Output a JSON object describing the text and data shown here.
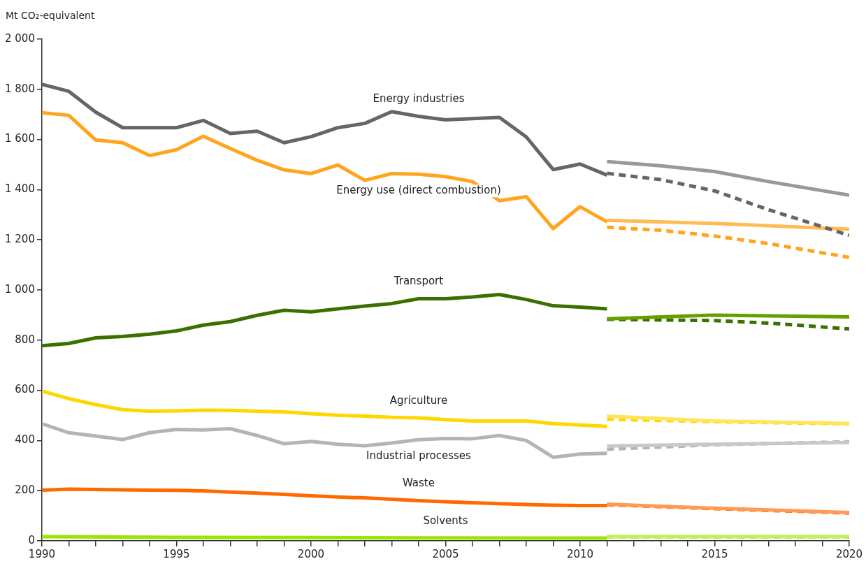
{
  "chart_data": {
    "type": "line",
    "ylabel": "Mt CO₂-equivalent",
    "xlim": [
      1990,
      2020
    ],
    "ylim": [
      0,
      2000
    ],
    "xticks": [
      1990,
      {
        "value": 1991,
        "label": null
      },
      {
        "value": 1992,
        "label": null
      },
      {
        "value": 1993,
        "label": null
      },
      {
        "value": 1994,
        "label": null
      },
      1995,
      {
        "value": 1996,
        "label": null
      },
      {
        "value": 1997,
        "label": null
      },
      {
        "value": 1998,
        "label": null
      },
      {
        "value": 1999,
        "label": null
      },
      2000,
      {
        "value": 2001,
        "label": null
      },
      {
        "value": 2002,
        "label": null
      },
      {
        "value": 2003,
        "label": null
      },
      {
        "value": 2004,
        "label": null
      },
      2005,
      {
        "value": 2006,
        "label": null
      },
      {
        "value": 2007,
        "label": null
      },
      {
        "value": 2008,
        "label": null
      },
      {
        "value": 2009,
        "label": null
      },
      2010,
      {
        "value": 2011,
        "label": null
      },
      {
        "value": 2012,
        "label": null
      },
      {
        "value": 2013,
        "label": null
      },
      {
        "value": 2014,
        "label": null
      },
      2015,
      {
        "value": 2016,
        "label": null
      },
      {
        "value": 2017,
        "label": null
      },
      {
        "value": 2018,
        "label": null
      },
      {
        "value": 2019,
        "label": null
      },
      2020
    ],
    "yticks": [
      0,
      200,
      400,
      600,
      800,
      {
        "value": 1000,
        "label": "1 000"
      },
      {
        "value": 1200,
        "label": "1 200"
      },
      {
        "value": 1400,
        "label": "1 400"
      },
      {
        "value": 1600,
        "label": "1 600"
      },
      {
        "value": 1800,
        "label": "1 800"
      },
      {
        "value": 2000,
        "label": "2 000"
      }
    ],
    "grid": false,
    "legend": false,
    "marker": "none",
    "series": [
      {
        "name": "Energy industries",
        "color": "#666666",
        "line_style": "solid",
        "x": [
          1990,
          1991,
          1992,
          1993,
          1994,
          1995,
          1996,
          1997,
          1998,
          1999,
          2000,
          2001,
          2002,
          2003,
          2004,
          2005,
          2006,
          2007,
          2008,
          2009,
          2010,
          2011
        ],
        "values": [
          1820,
          1792,
          1709,
          1647,
          1647,
          1647,
          1676,
          1624,
          1633,
          1587,
          1611,
          1647,
          1664,
          1711,
          1692,
          1678,
          1683,
          1688,
          1610,
          1480,
          1502,
          1458
        ]
      },
      {
        "color": "#999999",
        "line_style": "solid",
        "x": [
          2011,
          2013,
          2015,
          2017,
          2020
        ],
        "values": [
          1512,
          1495,
          1472,
          1432,
          1378
        ]
      },
      {
        "color": "#666666",
        "line_style": "dashed",
        "x": [
          2011,
          2013,
          2015,
          2017,
          2020
        ],
        "values": [
          1465,
          1440,
          1395,
          1320,
          1218
        ]
      },
      {
        "name": "Energy use (direct combustion)",
        "color": "#ffa41c",
        "line_style": "solid",
        "x": [
          1990,
          1991,
          1992,
          1993,
          1994,
          1995,
          1996,
          1997,
          1998,
          1999,
          2000,
          2001,
          2002,
          2003,
          2004,
          2005,
          2006,
          2007,
          2008,
          2009,
          2010,
          2011
        ],
        "values": [
          1707,
          1696,
          1598,
          1587,
          1536,
          1559,
          1613,
          1564,
          1517,
          1479,
          1464,
          1498,
          1437,
          1464,
          1462,
          1452,
          1432,
          1356,
          1372,
          1245,
          1332,
          1272
        ]
      },
      {
        "color": "#ffbb55",
        "line_style": "solid",
        "x": [
          2011,
          2015,
          2020
        ],
        "values": [
          1278,
          1265,
          1242
        ]
      },
      {
        "color": "#ffa41c",
        "line_style": "dashed",
        "x": [
          2011,
          2013,
          2015,
          2017,
          2020
        ],
        "values": [
          1250,
          1238,
          1215,
          1185,
          1130
        ]
      },
      {
        "name": "Transport",
        "color": "#3a7000",
        "line_style": "solid",
        "x": [
          1990,
          1991,
          1992,
          1993,
          1994,
          1995,
          1996,
          1997,
          1998,
          1999,
          2000,
          2001,
          2002,
          2003,
          2004,
          2005,
          2006,
          2007,
          2008,
          2009,
          2010,
          2011
        ],
        "values": [
          778,
          787,
          809,
          815,
          824,
          837,
          860,
          874,
          899,
          919,
          913,
          925,
          936,
          946,
          965,
          965,
          972,
          982,
          962,
          937,
          932,
          925
        ]
      },
      {
        "color": "#66a000",
        "line_style": "solid",
        "x": [
          2011,
          2015,
          2020
        ],
        "values": [
          885,
          900,
          893
        ]
      },
      {
        "color": "#3a7000",
        "line_style": "dashed",
        "x": [
          2011,
          2015,
          2017,
          2020
        ],
        "values": [
          883,
          878,
          868,
          845
        ]
      },
      {
        "name": "Agriculture",
        "color": "#ffd700",
        "line_style": "solid",
        "x": [
          1990,
          1991,
          1992,
          1993,
          1994,
          1995,
          1996,
          1997,
          1998,
          1999,
          2000,
          2001,
          2002,
          2003,
          2004,
          2005,
          2006,
          2007,
          2008,
          2009,
          2010,
          2011
        ],
        "values": [
          597,
          567,
          543,
          523,
          517,
          518,
          521,
          520,
          517,
          514,
          507,
          501,
          497,
          492,
          490,
          483,
          478,
          478,
          478,
          467,
          462,
          456
        ]
      },
      {
        "color": "#ffe45c",
        "line_style": "solid",
        "x": [
          2011,
          2015,
          2020
        ],
        "values": [
          497,
          478,
          468
        ]
      },
      {
        "color": "#ffd700",
        "line_style": "dashed",
        "x": [
          2011,
          2015,
          2020
        ],
        "values": [
          485,
          475,
          466
        ]
      },
      {
        "name": "Industrial processes",
        "color": "#b4b4b4",
        "line_style": "solid",
        "x": [
          1990,
          1991,
          1992,
          1993,
          1994,
          1995,
          1996,
          1997,
          1998,
          1999,
          2000,
          2001,
          2002,
          2003,
          2004,
          2005,
          2006,
          2007,
          2008,
          2009,
          2010,
          2011
        ],
        "values": [
          467,
          431,
          418,
          404,
          431,
          444,
          442,
          447,
          420,
          387,
          396,
          385,
          379,
          390,
          403,
          408,
          407,
          420,
          400,
          333,
          346,
          349
        ]
      },
      {
        "color": "#c8c8c8",
        "line_style": "solid",
        "x": [
          2011,
          2015,
          2020
        ],
        "values": [
          378,
          385,
          392
        ]
      },
      {
        "color": "#b4b4b4",
        "line_style": "dashed",
        "x": [
          2011,
          2015,
          2020
        ],
        "values": [
          365,
          383,
          395
        ]
      },
      {
        "name": "Waste",
        "color": "#ff6a00",
        "line_style": "solid",
        "x": [
          1990,
          1991,
          1992,
          1993,
          1994,
          1995,
          1996,
          1997,
          1998,
          1999,
          2000,
          2001,
          2002,
          2003,
          2004,
          2005,
          2006,
          2007,
          2008,
          2009,
          2010,
          2011
        ],
        "values": [
          202,
          206,
          205,
          203,
          202,
          201,
          199,
          194,
          190,
          185,
          180,
          175,
          171,
          166,
          160,
          156,
          152,
          148,
          145,
          142,
          141,
          141
        ]
      },
      {
        "color": "#ff9a55",
        "line_style": "solid",
        "x": [
          2011,
          2015,
          2020
        ],
        "values": [
          146,
          130,
          113
        ]
      },
      {
        "color": "#ff6a00",
        "line_style": "dashed",
        "x": [
          2011,
          2015,
          2020
        ],
        "values": [
          144,
          128,
          111
        ]
      },
      {
        "name": "Solvents",
        "color": "#99e600",
        "line_style": "solid",
        "x": [
          1990,
          1995,
          2000,
          2004,
          2005,
          2011
        ],
        "values": [
          17,
          14,
          13,
          12,
          12,
          11
        ]
      },
      {
        "color": "#bff060",
        "line_style": "solid",
        "x": [
          2011,
          2020
        ],
        "values": [
          17,
          17
        ]
      },
      {
        "color": "#99e600",
        "line_style": "dashed",
        "x": [
          2011,
          2020
        ],
        "values": [
          16,
          16
        ]
      }
    ]
  }
}
